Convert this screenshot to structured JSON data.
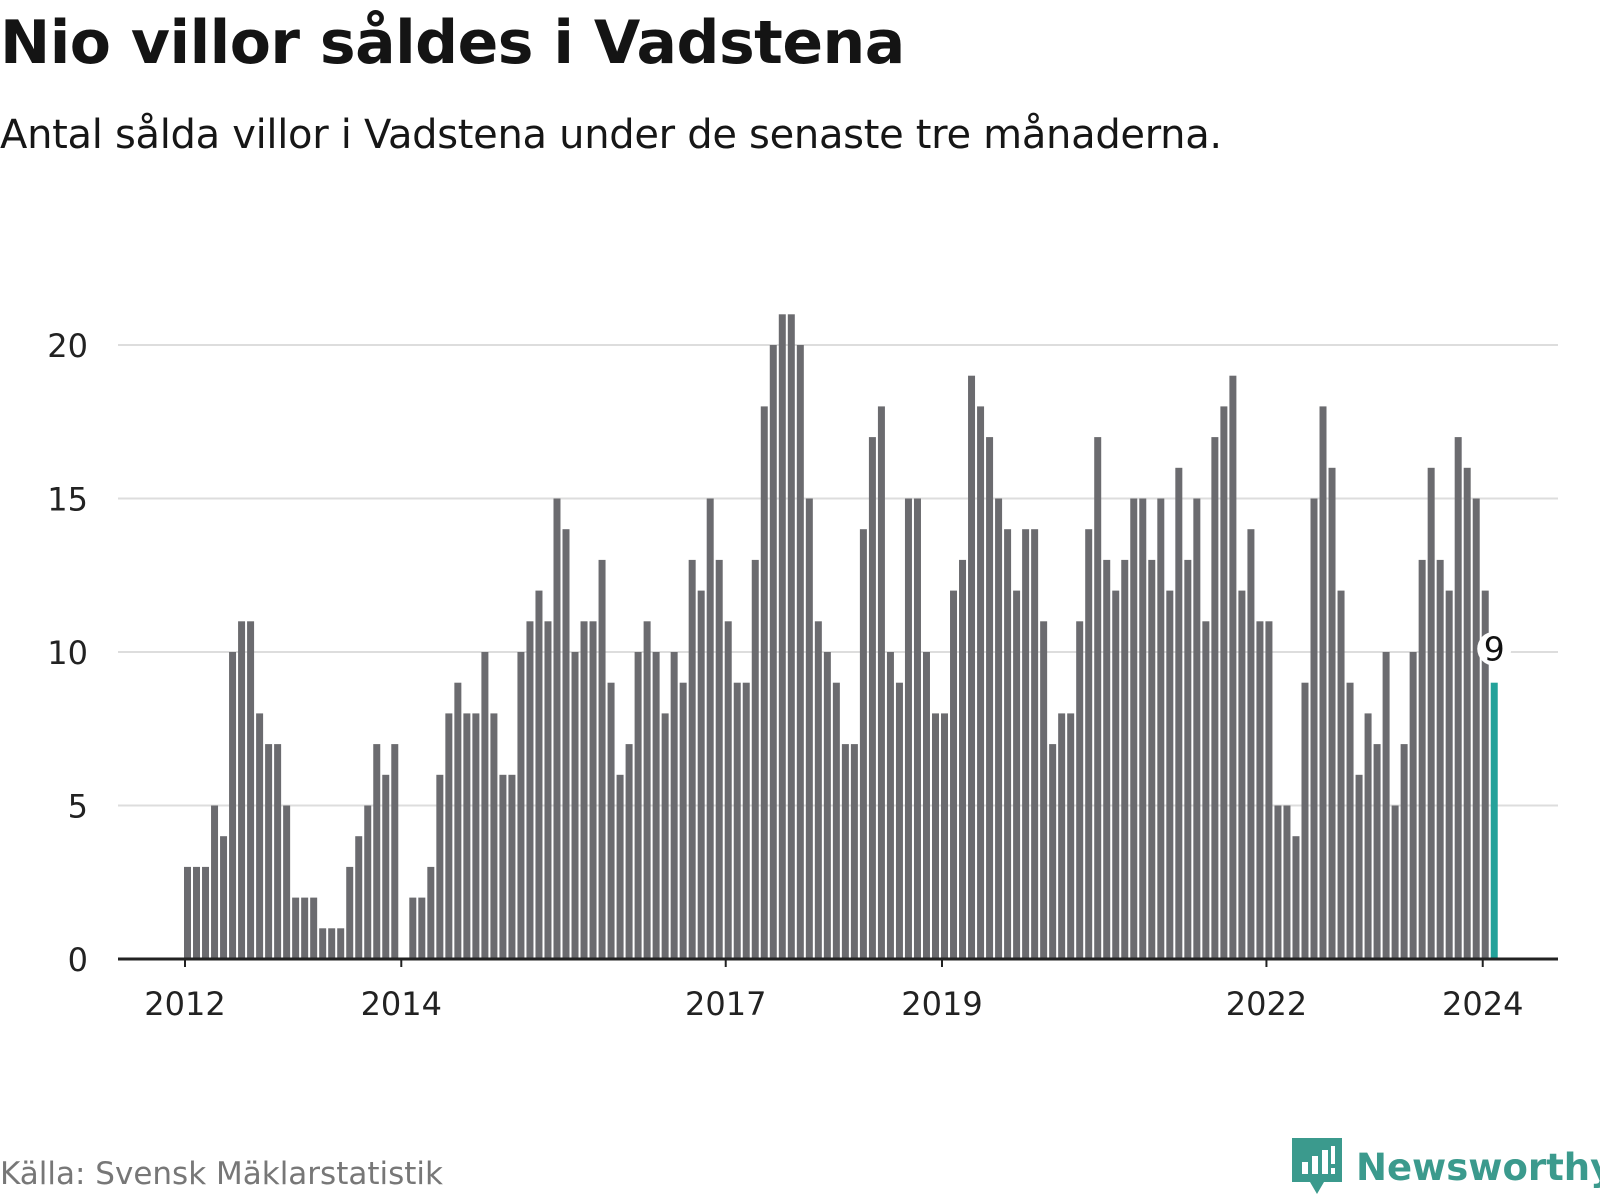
{
  "title": "Nio villor såldes i Vadstena",
  "subtitle": "Antal sålda villor i Vadstena under de senaste tre månaderna.",
  "source": "Källa: Svensk Mäklarstatistik",
  "brand": {
    "name": "Newsworthy",
    "icon": "newsworthy-logo-icon",
    "color": "#3b9a8d"
  },
  "colors": {
    "bar": "#6b6b6f",
    "highlight": "#23a29a",
    "grid": "#dddddd",
    "axis": "#222222"
  },
  "chart_data": {
    "type": "bar",
    "title": "Nio villor såldes i Vadstena",
    "xlabel": "",
    "ylabel": "",
    "ylim": [
      0,
      22
    ],
    "y_ticks": [
      0,
      5,
      10,
      15,
      20
    ],
    "x_ticks": [
      "2012",
      "2014",
      "2017",
      "2019",
      "2022",
      "2024"
    ],
    "x_tick_bar_index": [
      0,
      24,
      60,
      84,
      120,
      144
    ],
    "grid": true,
    "highlight_index": 145,
    "highlight_label": "9",
    "values": [
      3,
      3,
      3,
      5,
      4,
      10,
      11,
      11,
      8,
      7,
      7,
      5,
      2,
      2,
      2,
      1,
      1,
      1,
      3,
      4,
      5,
      7,
      6,
      7,
      0,
      2,
      2,
      3,
      6,
      8,
      9,
      8,
      8,
      10,
      8,
      6,
      6,
      10,
      11,
      12,
      11,
      15,
      14,
      10,
      11,
      11,
      13,
      9,
      6,
      7,
      10,
      11,
      10,
      8,
      10,
      9,
      13,
      12,
      15,
      13,
      11,
      9,
      9,
      13,
      18,
      20,
      21,
      21,
      20,
      15,
      11,
      10,
      9,
      7,
      7,
      14,
      17,
      18,
      10,
      9,
      15,
      15,
      10,
      8,
      8,
      12,
      13,
      19,
      18,
      17,
      15,
      14,
      12,
      14,
      14,
      11,
      7,
      8,
      8,
      11,
      14,
      17,
      13,
      12,
      13,
      15,
      15,
      13,
      15,
      12,
      16,
      13,
      15,
      11,
      17,
      18,
      19,
      12,
      14,
      11,
      11,
      5,
      5,
      4,
      9,
      15,
      18,
      16,
      12,
      9,
      6,
      8,
      7,
      10,
      5,
      7,
      10,
      13,
      16,
      13,
      12,
      17,
      16,
      15,
      12,
      9
    ]
  }
}
